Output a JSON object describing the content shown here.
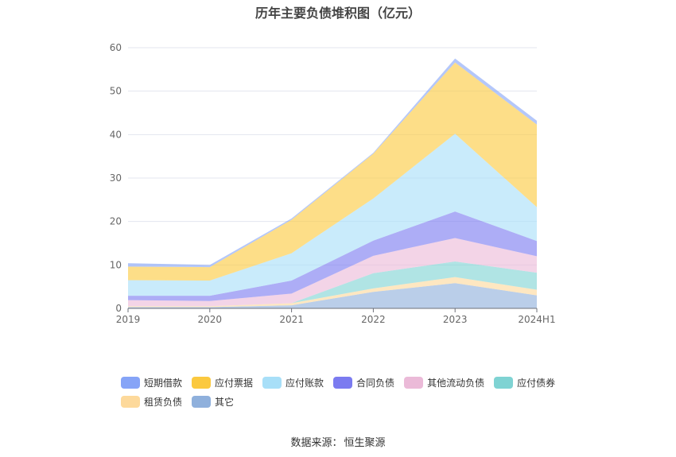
{
  "title": "历年主要负债堆积图（亿元）",
  "source": {
    "label": "数据来源：",
    "value": "恒生聚源"
  },
  "chart_data": {
    "type": "area",
    "stacked": true,
    "x": [
      "2019",
      "2020",
      "2021",
      "2022",
      "2023",
      "2024H1"
    ],
    "ylim": [
      0,
      60
    ],
    "yticks": [
      0,
      10,
      20,
      30,
      40,
      50,
      60
    ],
    "grid": true,
    "legend_position": "bottom",
    "series": [
      {
        "name": "其它",
        "color": "#8fb0dc",
        "values": [
          0.3,
          0.3,
          0.7,
          3.8,
          5.8,
          3.0
        ]
      },
      {
        "name": "租赁负债",
        "color": "#fdd99b",
        "values": [
          0.2,
          0.2,
          0.5,
          0.8,
          1.4,
          1.3
        ]
      },
      {
        "name": "应付债券",
        "color": "#7fd3d3",
        "values": [
          0.0,
          0.0,
          0.0,
          3.5,
          3.6,
          3.9
        ]
      },
      {
        "name": "其他流动负债",
        "color": "#ebbad8",
        "values": [
          1.4,
          1.2,
          2.2,
          4.0,
          5.4,
          3.8
        ]
      },
      {
        "name": "合同负债",
        "color": "#7b7bf0",
        "values": [
          1.0,
          1.2,
          3.0,
          3.5,
          6.1,
          3.5
        ]
      },
      {
        "name": "应付账款",
        "color": "#a8dff8",
        "values": [
          3.6,
          3.5,
          6.3,
          9.7,
          17.9,
          7.8
        ]
      },
      {
        "name": "应付票据",
        "color": "#fbc93f",
        "values": [
          3.1,
          3.1,
          7.7,
          10.3,
          16.4,
          19.0
        ]
      },
      {
        "name": "短期借款",
        "color": "#86a4f7",
        "values": [
          0.8,
          0.5,
          0.3,
          0.2,
          0.9,
          0.9
        ]
      }
    ],
    "legend_order": [
      "短期借款",
      "应付票据",
      "应付账款",
      "合同负债",
      "其他流动负债",
      "应付债券",
      "租赁负债",
      "其它"
    ]
  }
}
